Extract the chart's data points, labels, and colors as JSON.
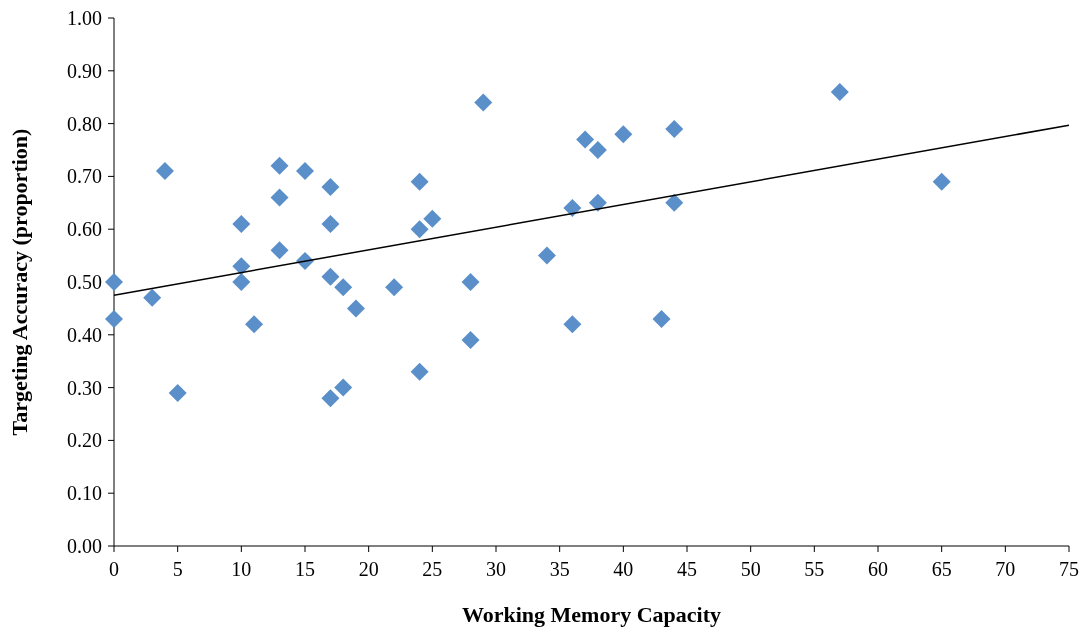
{
  "chart_data": {
    "type": "scatter",
    "xlabel": "Working Memory Capacity",
    "ylabel": "Targeting Accuracy (proportion)",
    "grid": false,
    "xlim": [
      0,
      75
    ],
    "xticks": [
      0,
      5,
      10,
      15,
      20,
      25,
      30,
      35,
      40,
      45,
      50,
      55,
      60,
      65,
      70,
      75
    ],
    "ylim": [
      0,
      1
    ],
    "yticks": [
      {
        "value": 0,
        "label": "0.00"
      },
      {
        "value": 0.1,
        "label": "0.10"
      },
      {
        "value": 0.2,
        "label": "0.20"
      },
      {
        "value": 0.3,
        "label": "0.30"
      },
      {
        "value": 0.4,
        "label": "0.40"
      },
      {
        "value": 0.5,
        "label": "0.50"
      },
      {
        "value": 0.6,
        "label": "0.60"
      },
      {
        "value": 0.7,
        "label": "0.70"
      },
      {
        "value": 0.8,
        "label": "0.80"
      },
      {
        "value": 0.9,
        "label": "0.90"
      },
      {
        "value": 1,
        "label": "1.00"
      }
    ],
    "series": [
      {
        "marker": "diamond",
        "color": "#5b8fc9",
        "x": [
          0,
          0,
          3,
          4,
          5,
          10,
          10,
          10,
          11,
          13,
          13,
          13,
          15,
          15,
          17,
          17,
          17,
          17,
          18,
          18,
          19,
          22,
          24,
          24,
          24,
          25,
          28,
          28,
          29,
          34,
          36,
          36,
          37,
          38,
          38,
          40,
          43,
          44,
          44,
          57,
          65
        ],
        "values": [
          0.5,
          0.43,
          0.47,
          0.71,
          0.29,
          0.61,
          0.53,
          0.5,
          0.42,
          0.72,
          0.66,
          0.56,
          0.71,
          0.54,
          0.68,
          0.61,
          0.51,
          0.28,
          0.49,
          0.3,
          0.45,
          0.49,
          0.69,
          0.6,
          0.33,
          0.62,
          0.5,
          0.39,
          0.84,
          0.55,
          0.64,
          0.42,
          0.77,
          0.75,
          0.65,
          0.78,
          0.43,
          0.79,
          0.65,
          0.86,
          0.69
        ]
      },
      {
        "type": "line",
        "color": "#000000",
        "x": [
          0,
          75
        ],
        "values": [
          0.475,
          0.797
        ]
      }
    ]
  }
}
